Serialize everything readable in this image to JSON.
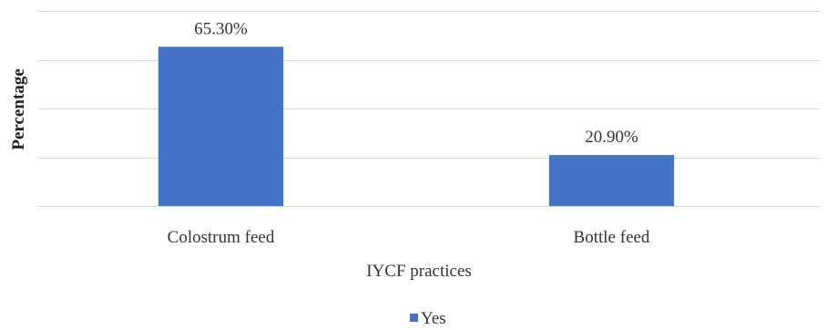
{
  "chart_data": {
    "type": "bar",
    "title": "",
    "xlabel": "IYCF practices",
    "ylabel": "Percentage",
    "categories": [
      "Colostrum feed",
      "Bottle feed"
    ],
    "series": [
      {
        "name": "Yes",
        "values": [
          65.3,
          20.9
        ],
        "data_labels": [
          "65.30%",
          "20.90%"
        ]
      }
    ],
    "ylim": [
      0,
      80
    ],
    "y_grid_step": 20,
    "grid": true,
    "legend_position": "bottom",
    "colors": {
      "bar": "#4472c4",
      "grid": "#d9d9d9"
    }
  }
}
